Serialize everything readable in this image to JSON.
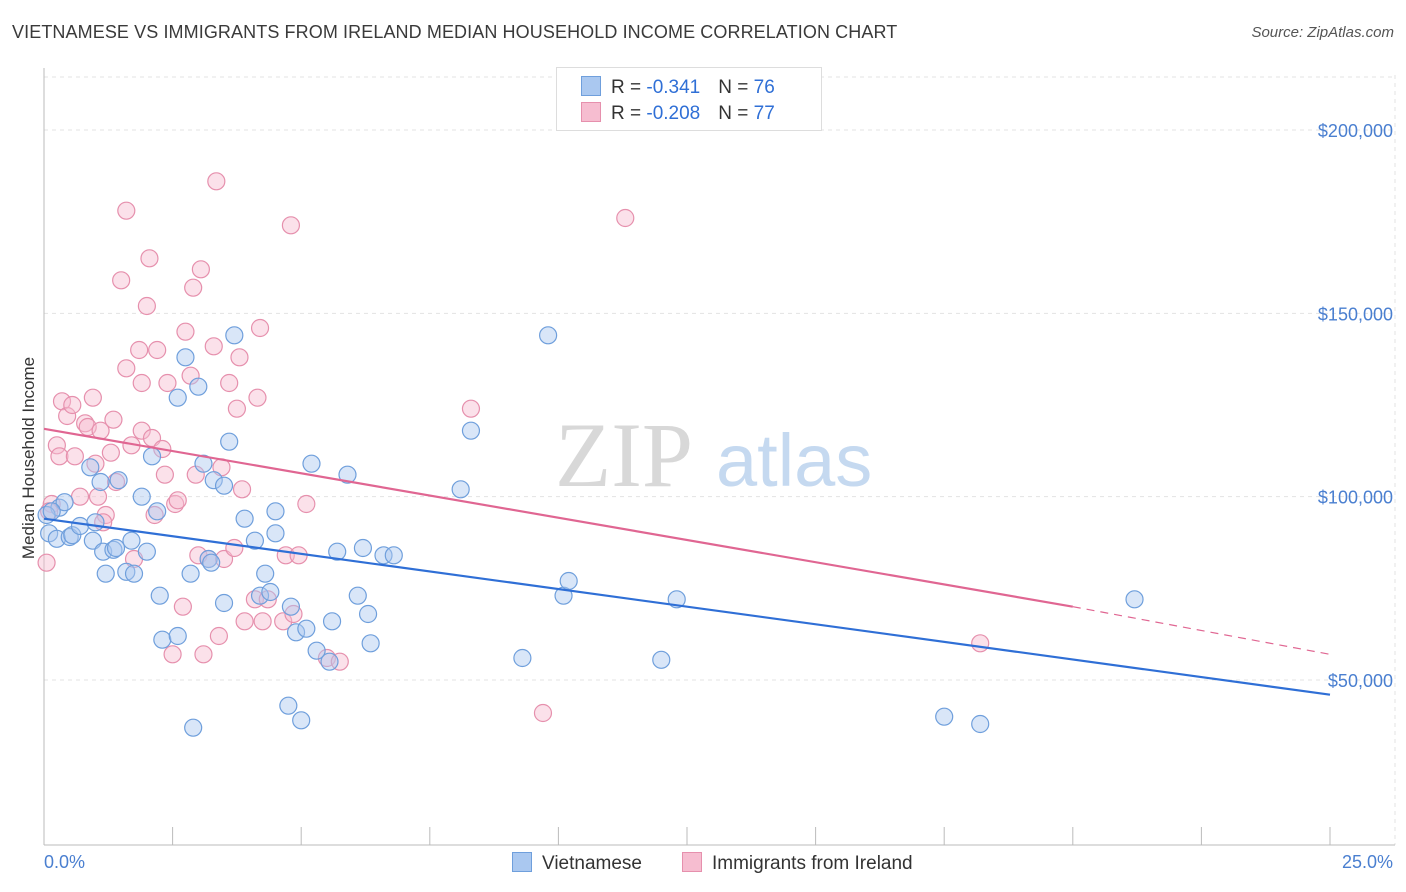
{
  "title": "VIETNAMESE VS IMMIGRANTS FROM IRELAND MEDIAN HOUSEHOLD INCOME CORRELATION CHART",
  "source": "Source: ZipAtlas.com",
  "watermark": {
    "zip": "ZIP",
    "atlas": "atlas"
  },
  "legend": {
    "rows": [
      {
        "r_label": "R = ",
        "r_value": "-0.341",
        "n_label": "N = ",
        "n_value": "76"
      },
      {
        "r_label": "R = ",
        "r_value": "-0.208",
        "n_label": "N = ",
        "n_value": "77"
      }
    ]
  },
  "bottom_legend": [
    "Vietnamese",
    "Immigrants from Ireland"
  ],
  "colors": {
    "vietnamese_fill": "#aac8f0",
    "vietnamese_stroke": "#6f9fdc",
    "vietnamese_line": "#2f6fd6",
    "ireland_fill": "#f6bdd0",
    "ireland_stroke": "#e690ad",
    "ireland_line": "#e06692",
    "tick_text": "#4a7fd0",
    "grid": "#e3e3e3"
  },
  "chart_data": {
    "type": "scatter",
    "title": "VIETNAMESE VS IMMIGRANTS FROM IRELAND MEDIAN HOUSEHOLD INCOME CORRELATION CHART",
    "xlabel": "",
    "ylabel": "Median Household Income",
    "xlim": [
      0,
      25
    ],
    "ylim": [
      5000,
      215000
    ],
    "x_tick_labels": [
      "0.0%",
      "25.0%"
    ],
    "y_ticks": [
      50000,
      100000,
      150000,
      200000
    ],
    "y_tick_labels": [
      "$50,000",
      "$100,000",
      "$150,000",
      "$200,000"
    ],
    "grid": true,
    "legend_placement": "top-center",
    "series": [
      {
        "name": "Vietnamese",
        "r": -0.341,
        "n": 76,
        "trend": {
          "x": [
            0,
            25
          ],
          "y": [
            94000,
            46000
          ]
        },
        "points": [
          [
            0.1,
            90000
          ],
          [
            0.25,
            88500
          ],
          [
            0.3,
            97000
          ],
          [
            0.4,
            98500
          ],
          [
            0.5,
            89000
          ],
          [
            0.55,
            89500
          ],
          [
            0.7,
            92000
          ],
          [
            0.9,
            108000
          ],
          [
            0.95,
            88000
          ],
          [
            1.1,
            104000
          ],
          [
            1.15,
            85000
          ],
          [
            1.2,
            79000
          ],
          [
            1.35,
            85500
          ],
          [
            1.4,
            86000
          ],
          [
            1.45,
            104500
          ],
          [
            1.6,
            79500
          ],
          [
            1.7,
            88000
          ],
          [
            1.75,
            79000
          ],
          [
            1.9,
            100000
          ],
          [
            2.0,
            85000
          ],
          [
            2.1,
            111000
          ],
          [
            2.2,
            96000
          ],
          [
            2.25,
            73000
          ],
          [
            2.3,
            61000
          ],
          [
            2.6,
            127000
          ],
          [
            2.6,
            62000
          ],
          [
            2.75,
            138000
          ],
          [
            2.85,
            79000
          ],
          [
            2.9,
            37000
          ],
          [
            3.0,
            130000
          ],
          [
            3.1,
            109000
          ],
          [
            3.2,
            83000
          ],
          [
            3.3,
            104500
          ],
          [
            3.5,
            71000
          ],
          [
            3.5,
            103000
          ],
          [
            3.6,
            115000
          ],
          [
            3.7,
            144000
          ],
          [
            3.9,
            94000
          ],
          [
            4.1,
            88000
          ],
          [
            4.2,
            73000
          ],
          [
            4.3,
            79000
          ],
          [
            4.4,
            74000
          ],
          [
            4.5,
            90000
          ],
          [
            4.5,
            96000
          ],
          [
            4.75,
            43000
          ],
          [
            4.8,
            70000
          ],
          [
            4.9,
            63000
          ],
          [
            5.0,
            39000
          ],
          [
            5.1,
            64000
          ],
          [
            5.2,
            109000
          ],
          [
            5.3,
            58000
          ],
          [
            5.55,
            55000
          ],
          [
            5.6,
            66000
          ],
          [
            5.7,
            85000
          ],
          [
            5.9,
            106000
          ],
          [
            6.1,
            73000
          ],
          [
            6.2,
            86000
          ],
          [
            6.3,
            68000
          ],
          [
            6.35,
            60000
          ],
          [
            6.6,
            84000
          ],
          [
            6.8,
            84000
          ],
          [
            8.1,
            102000
          ],
          [
            8.3,
            118000
          ],
          [
            9.3,
            56000
          ],
          [
            9.8,
            144000
          ],
          [
            10.1,
            73000
          ],
          [
            10.2,
            77000
          ],
          [
            12.0,
            55500
          ],
          [
            12.3,
            72000
          ],
          [
            17.5,
            40000
          ],
          [
            18.2,
            38000
          ],
          [
            21.2,
            72000
          ],
          [
            0.05,
            95000
          ],
          [
            0.15,
            96000
          ],
          [
            1.0,
            93000
          ],
          [
            3.25,
            82000
          ]
        ]
      },
      {
        "name": "Immigrants from Ireland",
        "r": -0.208,
        "n": 77,
        "trend": {
          "x": [
            0,
            20
          ],
          "y": [
            118500,
            70000
          ]
        },
        "trend_dashed": {
          "x": [
            20,
            25
          ],
          "y": [
            70000,
            57000
          ]
        },
        "points": [
          [
            0.05,
            82000
          ],
          [
            0.15,
            98000
          ],
          [
            0.25,
            114000
          ],
          [
            0.3,
            111000
          ],
          [
            0.35,
            126000
          ],
          [
            0.45,
            122000
          ],
          [
            0.55,
            125000
          ],
          [
            0.6,
            111000
          ],
          [
            0.7,
            100000
          ],
          [
            0.8,
            120000
          ],
          [
            0.85,
            119000
          ],
          [
            0.95,
            127000
          ],
          [
            1.0,
            109000
          ],
          [
            1.05,
            100000
          ],
          [
            1.1,
            118000
          ],
          [
            1.2,
            95000
          ],
          [
            1.3,
            112000
          ],
          [
            1.35,
            121000
          ],
          [
            1.4,
            104000
          ],
          [
            1.5,
            159000
          ],
          [
            1.6,
            135000
          ],
          [
            1.6,
            178000
          ],
          [
            1.7,
            114000
          ],
          [
            1.75,
            83000
          ],
          [
            1.85,
            140000
          ],
          [
            1.9,
            131000
          ],
          [
            1.9,
            118000
          ],
          [
            2.0,
            152000
          ],
          [
            2.05,
            165000
          ],
          [
            2.1,
            116000
          ],
          [
            2.15,
            95000
          ],
          [
            2.2,
            140000
          ],
          [
            2.3,
            113000
          ],
          [
            2.35,
            106000
          ],
          [
            2.4,
            131000
          ],
          [
            2.5,
            57000
          ],
          [
            2.55,
            98000
          ],
          [
            2.6,
            99000
          ],
          [
            2.7,
            70000
          ],
          [
            2.75,
            145000
          ],
          [
            2.85,
            133000
          ],
          [
            2.9,
            157000
          ],
          [
            2.95,
            106000
          ],
          [
            3.0,
            84000
          ],
          [
            3.05,
            162000
          ],
          [
            3.1,
            57000
          ],
          [
            3.2,
            83000
          ],
          [
            3.3,
            141000
          ],
          [
            3.35,
            186000
          ],
          [
            3.4,
            62000
          ],
          [
            3.45,
            108000
          ],
          [
            3.5,
            83000
          ],
          [
            3.6,
            131000
          ],
          [
            3.7,
            86000
          ],
          [
            3.75,
            124000
          ],
          [
            3.8,
            138000
          ],
          [
            3.85,
            102000
          ],
          [
            3.9,
            66000
          ],
          [
            4.1,
            72000
          ],
          [
            4.15,
            127000
          ],
          [
            4.2,
            146000
          ],
          [
            4.25,
            66000
          ],
          [
            4.35,
            72000
          ],
          [
            4.65,
            66000
          ],
          [
            4.7,
            84000
          ],
          [
            4.8,
            174000
          ],
          [
            4.85,
            68000
          ],
          [
            4.95,
            84000
          ],
          [
            5.1,
            98000
          ],
          [
            5.5,
            56000
          ],
          [
            5.75,
            55000
          ],
          [
            8.3,
            124000
          ],
          [
            9.7,
            41000
          ],
          [
            11.3,
            176000
          ],
          [
            18.2,
            60000
          ],
          [
            0.1,
            96000
          ],
          [
            1.15,
            93000
          ]
        ]
      }
    ]
  }
}
